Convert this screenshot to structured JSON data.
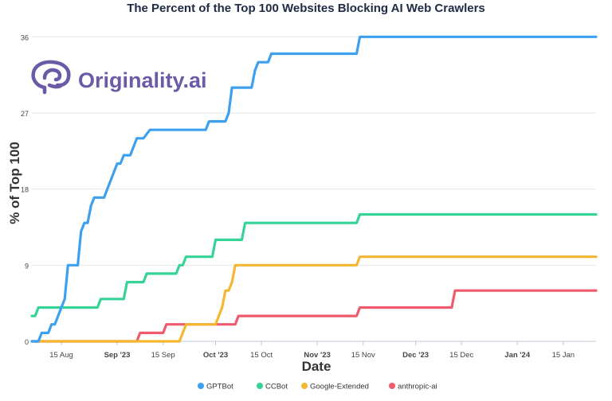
{
  "brand": {
    "name": "Originality.ai",
    "logo_color": "#6b5ba6"
  },
  "chart_data": {
    "type": "line",
    "title": "The Percent of the Top 100 Websites Blocking AI Web Crawlers",
    "xlabel": "Date",
    "ylabel": "% of Top 100",
    "xlim": [
      "2023-08-06",
      "2024-01-25"
    ],
    "ylim": [
      0,
      38
    ],
    "yticks": [
      0,
      9,
      18,
      27,
      36
    ],
    "xticks": [
      {
        "date": "2023-08-15",
        "label": "15 Aug",
        "bold": false
      },
      {
        "date": "2023-09-01",
        "label": "Sep '23",
        "bold": true
      },
      {
        "date": "2023-09-15",
        "label": "15 Sep",
        "bold": false
      },
      {
        "date": "2023-10-01",
        "label": "Oct '23",
        "bold": true
      },
      {
        "date": "2023-10-15",
        "label": "15 Oct",
        "bold": false
      },
      {
        "date": "2023-11-01",
        "label": "Nov '23",
        "bold": true
      },
      {
        "date": "2023-11-15",
        "label": "15 Nov",
        "bold": false
      },
      {
        "date": "2023-12-01",
        "label": "Dec '23",
        "bold": true
      },
      {
        "date": "2023-12-15",
        "label": "15 Dec",
        "bold": false
      },
      {
        "date": "2024-01-01",
        "label": "Jan '24",
        "bold": true
      },
      {
        "date": "2024-01-15",
        "label": "15 Jan",
        "bold": false
      }
    ],
    "grid": true,
    "legend_position": "bottom-center",
    "series": [
      {
        "name": "GPTBot",
        "color": "#3da0ef",
        "points": [
          [
            "2023-08-06",
            0
          ],
          [
            "2023-08-08",
            0
          ],
          [
            "2023-08-09",
            1
          ],
          [
            "2023-08-11",
            1
          ],
          [
            "2023-08-12",
            2
          ],
          [
            "2023-08-13",
            2
          ],
          [
            "2023-08-14",
            3
          ],
          [
            "2023-08-15",
            4
          ],
          [
            "2023-08-16",
            5
          ],
          [
            "2023-08-17",
            9
          ],
          [
            "2023-08-20",
            9
          ],
          [
            "2023-08-21",
            13
          ],
          [
            "2023-08-22",
            14
          ],
          [
            "2023-08-23",
            14
          ],
          [
            "2023-08-24",
            16
          ],
          [
            "2023-08-25",
            17
          ],
          [
            "2023-08-28",
            17
          ],
          [
            "2023-08-29",
            18
          ],
          [
            "2023-08-31",
            20
          ],
          [
            "2023-09-01",
            21
          ],
          [
            "2023-09-02",
            21
          ],
          [
            "2023-09-03",
            22
          ],
          [
            "2023-09-05",
            22
          ],
          [
            "2023-09-07",
            24
          ],
          [
            "2023-09-09",
            24
          ],
          [
            "2023-09-11",
            25
          ],
          [
            "2023-09-28",
            25
          ],
          [
            "2023-09-29",
            26
          ],
          [
            "2023-10-04",
            26
          ],
          [
            "2023-10-05",
            27
          ],
          [
            "2023-10-06",
            30
          ],
          [
            "2023-10-12",
            30
          ],
          [
            "2023-10-13",
            32
          ],
          [
            "2023-10-14",
            33
          ],
          [
            "2023-10-17",
            33
          ],
          [
            "2023-10-18",
            34
          ],
          [
            "2023-11-13",
            34
          ],
          [
            "2023-11-14",
            36
          ],
          [
            "2024-01-25",
            36
          ]
        ]
      },
      {
        "name": "CCBot",
        "color": "#35d396",
        "points": [
          [
            "2023-08-06",
            3
          ],
          [
            "2023-08-07",
            3
          ],
          [
            "2023-08-08",
            4
          ],
          [
            "2023-08-26",
            4
          ],
          [
            "2023-08-27",
            5
          ],
          [
            "2023-09-03",
            5
          ],
          [
            "2023-09-04",
            7
          ],
          [
            "2023-09-09",
            7
          ],
          [
            "2023-09-10",
            8
          ],
          [
            "2023-09-19",
            8
          ],
          [
            "2023-09-20",
            9
          ],
          [
            "2023-09-21",
            9
          ],
          [
            "2023-09-22",
            10
          ],
          [
            "2023-09-30",
            10
          ],
          [
            "2023-10-01",
            12
          ],
          [
            "2023-10-09",
            12
          ],
          [
            "2023-10-10",
            14
          ],
          [
            "2023-11-13",
            14
          ],
          [
            "2023-11-14",
            15
          ],
          [
            "2024-01-25",
            15
          ]
        ]
      },
      {
        "name": "Google-Extended",
        "color": "#f5b731",
        "points": [
          [
            "2023-08-06",
            0
          ],
          [
            "2023-09-20",
            0
          ],
          [
            "2023-09-21",
            1
          ],
          [
            "2023-09-22",
            2
          ],
          [
            "2023-10-01",
            2
          ],
          [
            "2023-10-02",
            3
          ],
          [
            "2023-10-03",
            4
          ],
          [
            "2023-10-04",
            6
          ],
          [
            "2023-10-05",
            6
          ],
          [
            "2023-10-06",
            7
          ],
          [
            "2023-10-07",
            9
          ],
          [
            "2023-11-13",
            9
          ],
          [
            "2023-11-14",
            10
          ],
          [
            "2024-01-25",
            10
          ]
        ]
      },
      {
        "name": "anthropic-ai",
        "color": "#f05a6e",
        "points": [
          [
            "2023-08-06",
            0
          ],
          [
            "2023-09-07",
            0
          ],
          [
            "2023-09-08",
            1
          ],
          [
            "2023-09-15",
            1
          ],
          [
            "2023-09-16",
            2
          ],
          [
            "2023-10-07",
            2
          ],
          [
            "2023-10-08",
            3
          ],
          [
            "2023-11-13",
            3
          ],
          [
            "2023-11-14",
            4
          ],
          [
            "2023-12-12",
            4
          ],
          [
            "2023-12-13",
            6
          ],
          [
            "2024-01-25",
            6
          ]
        ]
      }
    ]
  }
}
